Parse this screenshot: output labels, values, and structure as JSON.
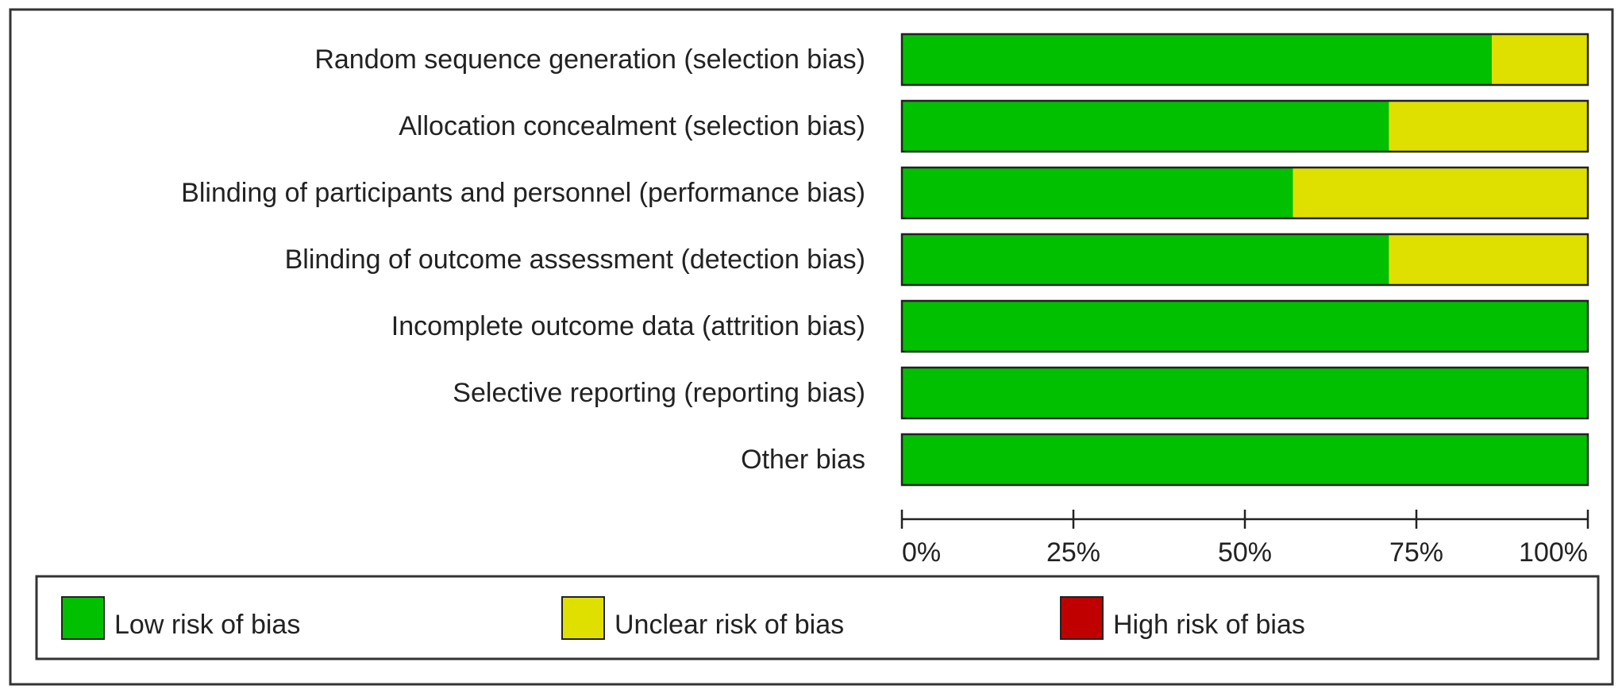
{
  "chart_data": {
    "type": "stacked-bar-horizontal",
    "categories": [
      "Random sequence generation (selection bias)",
      "Allocation concealment (selection bias)",
      "Blinding of participants and personnel (performance bias)",
      "Blinding of outcome assessment (detection bias)",
      "Incomplete outcome data (attrition bias)",
      "Selective reporting (reporting bias)",
      "Other bias"
    ],
    "series": [
      {
        "name": "Low risk of bias",
        "color": "#00c000",
        "values": [
          86,
          71,
          57,
          71,
          100,
          100,
          100
        ]
      },
      {
        "name": "Unclear risk of bias",
        "color": "#e0e000",
        "values": [
          14,
          29,
          43,
          29,
          0,
          0,
          0
        ]
      },
      {
        "name": "High risk of bias",
        "color": "#c00000",
        "values": [
          0,
          0,
          0,
          0,
          0,
          0,
          0
        ]
      }
    ],
    "xlim": [
      0,
      100
    ],
    "xticks": [
      {
        "value": 0,
        "label": "0%"
      },
      {
        "value": 25,
        "label": "25%"
      },
      {
        "value": 50,
        "label": "50%"
      },
      {
        "value": 75,
        "label": "75%"
      },
      {
        "value": 100,
        "label": "100%"
      }
    ]
  }
}
